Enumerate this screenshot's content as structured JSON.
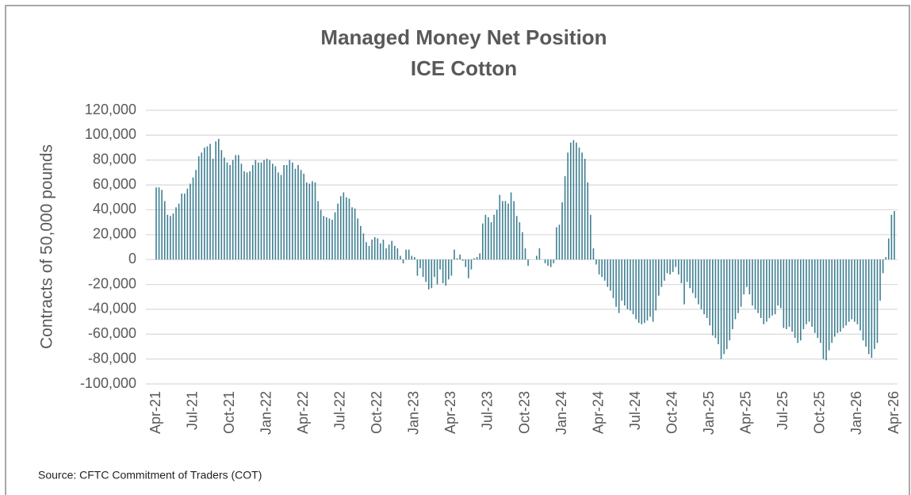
{
  "chart_data": {
    "type": "bar",
    "title": "Managed Money Net Position",
    "subtitle": "ICE Cotton",
    "y_axis_label": "Contracts of 50,000 pounds",
    "source": "Source: CFTC Commitment of Traders (COT)",
    "color": "#3f7f92",
    "grid": true,
    "ylim": [
      -100000,
      120000
    ],
    "yticks": [
      {
        "value": -100000,
        "label": "-100,000"
      },
      {
        "value": -80000,
        "label": "-80,000"
      },
      {
        "value": -60000,
        "label": "-60,000"
      },
      {
        "value": -40000,
        "label": "-40,000"
      },
      {
        "value": -20000,
        "label": "-20,000"
      },
      0,
      {
        "value": 20000,
        "label": "20,000"
      },
      {
        "value": 40000,
        "label": "40,000"
      },
      {
        "value": 60000,
        "label": "60,000"
      },
      {
        "value": 80000,
        "label": "80,000"
      },
      {
        "value": 100000,
        "label": "100,000"
      },
      {
        "value": 120000,
        "label": "120,000"
      }
    ],
    "categories": [
      "Apr-21",
      null,
      null,
      null,
      null,
      null,
      null,
      null,
      null,
      null,
      null,
      null,
      null,
      "Jul-21",
      null,
      null,
      null,
      null,
      null,
      null,
      null,
      null,
      null,
      null,
      null,
      null,
      "Oct-21",
      null,
      null,
      null,
      null,
      null,
      null,
      null,
      null,
      null,
      null,
      null,
      null,
      "Jan-22",
      null,
      null,
      null,
      null,
      null,
      null,
      null,
      null,
      null,
      null,
      null,
      null,
      "Apr-22",
      null,
      null,
      null,
      null,
      null,
      null,
      null,
      null,
      null,
      null,
      null,
      null,
      "Jul-22",
      null,
      null,
      null,
      null,
      null,
      null,
      null,
      null,
      null,
      null,
      null,
      null,
      "Oct-22",
      null,
      null,
      null,
      null,
      null,
      null,
      null,
      null,
      null,
      null,
      null,
      null,
      "Jan-23",
      null,
      null,
      null,
      null,
      null,
      null,
      null,
      null,
      null,
      null,
      null,
      null,
      "Apr-23",
      null,
      null,
      null,
      null,
      null,
      null,
      null,
      null,
      null,
      null,
      null,
      null,
      "Jul-23",
      null,
      null,
      null,
      null,
      null,
      null,
      null,
      null,
      null,
      null,
      null,
      null,
      "Oct-23",
      null,
      null,
      null,
      null,
      null,
      null,
      null,
      null,
      null,
      null,
      null,
      null,
      "Jan-24",
      null,
      null,
      null,
      null,
      null,
      null,
      null,
      null,
      null,
      null,
      null,
      null,
      "Apr-24",
      null,
      null,
      null,
      null,
      null,
      null,
      null,
      null,
      null,
      null,
      null,
      null,
      "Jul-24",
      null,
      null,
      null,
      null,
      null,
      null,
      null,
      null,
      null,
      null,
      null,
      null,
      "Oct-24",
      null,
      null,
      null,
      null,
      null,
      null,
      null,
      null,
      null,
      null,
      null,
      null,
      "Jan-25",
      null,
      null,
      null,
      null,
      null,
      null,
      null,
      null,
      null,
      null,
      null,
      null,
      "Apr-25",
      null,
      null,
      null,
      null,
      null,
      null,
      null,
      null,
      null,
      null,
      null,
      null,
      "Jul-25",
      null,
      null,
      null,
      null,
      null,
      null,
      null,
      null,
      null,
      null,
      null,
      null,
      "Oct-25",
      null,
      null,
      null,
      null,
      null,
      null,
      null,
      null,
      null,
      null,
      null,
      null,
      "Jan-26",
      null,
      null,
      null,
      null,
      null,
      null,
      null,
      null,
      null,
      null,
      null,
      null,
      "Apr-26"
    ],
    "values": [
      58000,
      58000,
      56000,
      47000,
      36000,
      35000,
      37000,
      42000,
      45000,
      53000,
      53000,
      57000,
      61000,
      66000,
      72000,
      83000,
      86000,
      90000,
      91000,
      93000,
      81000,
      95000,
      97000,
      88000,
      82000,
      78000,
      76000,
      80000,
      84000,
      84000,
      77000,
      71000,
      70000,
      71000,
      76000,
      80000,
      78000,
      78000,
      80000,
      81000,
      80000,
      77000,
      75000,
      70000,
      68000,
      76000,
      76000,
      80000,
      78000,
      73000,
      76000,
      72000,
      69000,
      62000,
      61000,
      63000,
      62000,
      47000,
      40000,
      35000,
      34000,
      33000,
      32000,
      38000,
      45000,
      51000,
      54000,
      50000,
      49000,
      42000,
      41000,
      33000,
      27000,
      21000,
      14000,
      11000,
      16000,
      18000,
      17000,
      13000,
      16000,
      9000,
      12000,
      15000,
      11000,
      9000,
      3000,
      -3000,
      8000,
      8000,
      3000,
      2000,
      -13000,
      -7000,
      -14000,
      -18000,
      -24000,
      -23000,
      -14000,
      -20000,
      -8000,
      -19000,
      -21000,
      -16000,
      -13000,
      8000,
      1000,
      4000,
      -1000,
      -6000,
      -15000,
      -8000,
      1000,
      2000,
      5000,
      29000,
      36000,
      34000,
      30000,
      36000,
      40000,
      52000,
      47000,
      47000,
      45000,
      54000,
      47000,
      35000,
      30000,
      22000,
      9000,
      -5000,
      0,
      0,
      3000,
      9000,
      0,
      -3000,
      -5000,
      -6000,
      -3000,
      26000,
      28000,
      46000,
      67000,
      86000,
      94000,
      96000,
      94000,
      90000,
      86000,
      81000,
      62000,
      36000,
      9000,
      -4000,
      -12000,
      -14000,
      -17000,
      -22000,
      -25000,
      -31000,
      -38000,
      -43000,
      -33000,
      -37000,
      -40000,
      -41000,
      -44000,
      -48000,
      -51000,
      -52000,
      -51000,
      -49000,
      -46000,
      -50000,
      -41000,
      -29000,
      -22000,
      -17000,
      -11000,
      -12000,
      -10000,
      -6000,
      -12000,
      -19000,
      -36000,
      -18000,
      -23000,
      -27000,
      -31000,
      -36000,
      -40000,
      -44000,
      -47000,
      -53000,
      -61000,
      -63000,
      -68000,
      -80000,
      -76000,
      -72000,
      -65000,
      -56000,
      -48000,
      -43000,
      -38000,
      -28000,
      -22000,
      -28000,
      -37000,
      -40000,
      -43000,
      -47000,
      -52000,
      -50000,
      -47000,
      -45000,
      -44000,
      -37000,
      -39000,
      -55000,
      -56000,
      -54000,
      -58000,
      -63000,
      -67000,
      -65000,
      -56000,
      -52000,
      -50000,
      -54000,
      -59000,
      -63000,
      -67000,
      -80000,
      -81000,
      -73000,
      -67000,
      -62000,
      -59000,
      -58000,
      -55000,
      -53000,
      -50000,
      -48000,
      -50000,
      -52000,
      -57000,
      -65000,
      -70000,
      -76000,
      -79000,
      -72000,
      -67000,
      -33000,
      -11000,
      2000,
      17000,
      36000,
      39000
    ]
  }
}
